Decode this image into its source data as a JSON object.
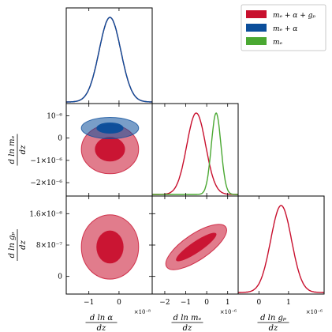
{
  "chart_data": {
    "type": "corner",
    "params": [
      {
        "key": "alpha",
        "label_num": "d ln α",
        "label_den": "dz",
        "exponent": "×10⁻⁸",
        "ticks": [
          "−1",
          "0"
        ],
        "range": [
          -1.75,
          1.1
        ]
      },
      {
        "key": "me",
        "label_num": "d ln mₑ",
        "label_den": "dz",
        "exponent": "×10⁻⁶",
        "ticks": [
          "−2",
          "−1",
          "0",
          "1"
        ],
        "range": [
          -2.6,
          1.5
        ]
      },
      {
        "key": "gp",
        "label_num": "d ln gₚ",
        "label_den": "dz",
        "exponent": "×10⁻⁶",
        "ticks": [
          "0",
          "1"
        ],
        "range": [
          -0.7,
          2.2
        ]
      }
    ],
    "y_ticks": {
      "me": [
        "10⁻⁶",
        "0",
        "−1×10⁻⁶",
        "−2×10⁻⁶"
      ],
      "me_values": [
        1.0,
        0.0,
        -1.0,
        -2.0
      ],
      "gp": [
        "1.6×10⁻⁶",
        "8×10⁻⁷",
        "0"
      ],
      "gp_values": [
        1.6,
        0.8,
        0.0
      ]
    },
    "series": [
      {
        "name": "mₑ + α + gₚ",
        "color": "#c8102e"
      },
      {
        "name": "mₑ + α",
        "color": "#0b4e9b"
      },
      {
        "name": "mₑ",
        "color": "#4aa832"
      }
    ],
    "marginals": {
      "alpha": [
        {
          "series": 0,
          "mean": -0.3,
          "sigma": 0.36
        },
        {
          "series": 1,
          "mean": -0.3,
          "sigma": 0.36
        }
      ],
      "me": [
        {
          "series": 0,
          "mean": -0.5,
          "sigma": 0.45
        },
        {
          "series": 2,
          "mean": 0.45,
          "sigma": 0.23
        }
      ],
      "gp": [
        {
          "series": 0,
          "mean": 0.75,
          "sigma": 0.35
        }
      ]
    },
    "contours": [
      {
        "x": "alpha",
        "y": "me",
        "series": 0,
        "center": [
          -0.3,
          -0.5
        ],
        "inner": [
          0.5,
          0.55
        ],
        "outer": [
          0.95,
          1.1
        ],
        "rot": 0
      },
      {
        "x": "alpha",
        "y": "me",
        "series": 1,
        "center": [
          -0.3,
          0.45
        ],
        "inner": [
          0.45,
          0.25
        ],
        "outer": [
          0.95,
          0.48
        ],
        "rot": 0
      },
      {
        "x": "alpha",
        "y": "gp",
        "series": 0,
        "center": [
          -0.3,
          0.75
        ],
        "inner": [
          0.45,
          0.42
        ],
        "outer": [
          0.95,
          0.82
        ],
        "rot": 0
      },
      {
        "x": "me",
        "y": "gp",
        "series": 0,
        "center": [
          -0.5,
          0.75
        ],
        "inner": [
          1.15,
          0.14
        ],
        "outer": [
          1.7,
          0.33
        ],
        "rot": -34
      }
    ]
  }
}
